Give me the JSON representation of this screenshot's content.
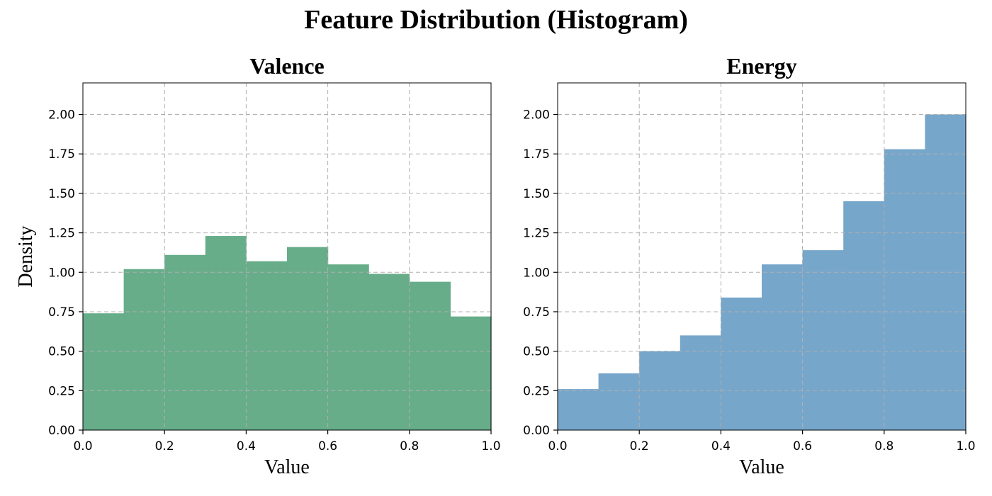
{
  "figure": {
    "suptitle": "Feature Distribution (Histogram)"
  },
  "chart_data": [
    {
      "type": "bar",
      "title": "Valence",
      "xlabel": "Value",
      "ylabel": "Density",
      "color": "#67ad8a",
      "bin_edges": [
        0.0,
        0.1,
        0.2,
        0.3,
        0.4,
        0.5,
        0.6,
        0.7,
        0.8,
        0.9,
        1.0
      ],
      "values": [
        0.74,
        1.02,
        1.11,
        1.23,
        1.07,
        1.16,
        1.05,
        0.99,
        0.94,
        0.72
      ],
      "xlim": [
        0.0,
        1.0
      ],
      "ylim": [
        0.0,
        2.2
      ],
      "xticks": [
        "0.0",
        "0.2",
        "0.4",
        "0.6",
        "0.8",
        "1.0"
      ],
      "yticks": [
        "0.00",
        "0.25",
        "0.50",
        "0.75",
        "1.00",
        "1.25",
        "1.50",
        "1.75",
        "2.00"
      ],
      "grid": true
    },
    {
      "type": "bar",
      "title": "Energy",
      "xlabel": "Value",
      "ylabel": "",
      "color": "#77a6cb",
      "bin_edges": [
        0.0,
        0.1,
        0.2,
        0.3,
        0.4,
        0.5,
        0.6,
        0.7,
        0.8,
        0.9,
        1.0
      ],
      "values": [
        0.26,
        0.36,
        0.5,
        0.6,
        0.84,
        1.05,
        1.14,
        1.45,
        1.78,
        2.0
      ],
      "xlim": [
        0.0,
        1.0
      ],
      "ylim": [
        0.0,
        2.2
      ],
      "xticks": [
        "0.0",
        "0.2",
        "0.4",
        "0.6",
        "0.8",
        "1.0"
      ],
      "yticks": [
        "0.00",
        "0.25",
        "0.50",
        "0.75",
        "1.00",
        "1.25",
        "1.50",
        "1.75",
        "2.00"
      ],
      "grid": true
    }
  ]
}
